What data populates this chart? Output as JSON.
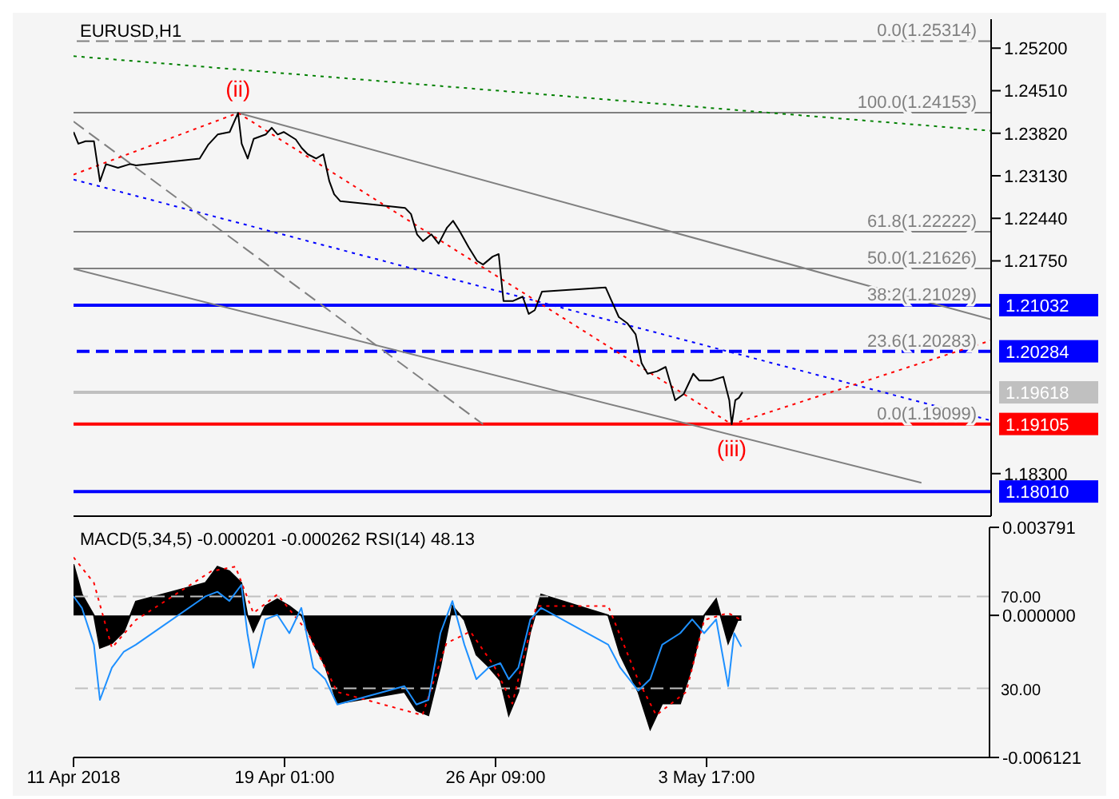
{
  "chart_data": [
    {
      "type": "line",
      "title": "EURUSD,H1",
      "xlim": [
        "2018-04-11T17:00",
        "2018-05-13T13:00"
      ],
      "ylim": [
        1.1761,
        1.2567
      ],
      "yticks": [
        {
          "value": 1.183,
          "label": "1.18300"
        },
        {
          "value": 1.2175,
          "label": "1.21750"
        },
        {
          "value": 1.2244,
          "label": "1.22440"
        },
        {
          "value": 1.2313,
          "label": "1.23130"
        },
        {
          "value": 1.2382,
          "label": "1.23820"
        },
        {
          "value": 1.2451,
          "label": "1.24510"
        },
        {
          "value": 1.252,
          "label": "1.25200"
        }
      ],
      "tick_labels": "y",
      "legend": false,
      "grid": false,
      "marker": "none",
      "annotations": [
        {
          "text": "0.0(1.25314)",
          "x": "2018-05-13T13:00",
          "y": 1.25314
        },
        {
          "text": "100.0(1.24153)",
          "x": "2018-05-13T13:00",
          "y": 1.24153
        },
        {
          "text": "61.8(1.22222)",
          "x": "2018-05-13T13:00",
          "y": 1.22222
        },
        {
          "text": "50.0(1.21626)",
          "x": "2018-05-13T13:00",
          "y": 1.21626
        },
        {
          "text": "38.2(1.21029)",
          "x": "2018-05-13T13:00",
          "y": 1.21029
        },
        {
          "text": "23.6(1.20283)",
          "x": "2018-05-13T13:00",
          "y": 1.20283
        },
        {
          "text": "0.0(1.19099)",
          "x": "2018-05-13T13:00",
          "y": 1.19099
        },
        {
          "text": "(ii)",
          "x": "2018-04-17T10:00",
          "y": 1.2415
        },
        {
          "text": "(iii)",
          "x": "2018-05-04T13:00",
          "y": 1.191
        }
      ],
      "ref_lines": [
        {
          "axis": "y",
          "value": 1.25314,
          "color": "#808080",
          "line_style": "dashed"
        },
        {
          "axis": "y",
          "value": 1.24153,
          "color": "#808080",
          "line_style": "solid"
        },
        {
          "axis": "y",
          "value": 1.22222,
          "color": "#808080",
          "line_style": "solid"
        },
        {
          "axis": "y",
          "value": 1.21626,
          "color": "#808080",
          "line_style": "solid"
        },
        {
          "axis": "y",
          "value": 1.21032,
          "label": "1.21032",
          "color": "#0000ff",
          "line_style": "solid"
        },
        {
          "axis": "y",
          "value": 1.20284,
          "label": "1.20284",
          "color": "#0000ff",
          "line_style": "dashed"
        },
        {
          "axis": "y",
          "value": 1.19618,
          "label": "1.19618",
          "color": "#c0c0c0",
          "line_style": "solid"
        },
        {
          "axis": "y",
          "value": 1.19105,
          "label": "1.19105",
          "color": "#ff0000",
          "line_style": "solid"
        },
        {
          "axis": "y",
          "value": 1.1801,
          "label": "1.18010",
          "color": "#0000ff",
          "line_style": "solid"
        }
      ],
      "series": [
        {
          "color": "#008000",
          "line_style": "dotted",
          "x": [
            "2018-04-11T17:00",
            "2018-05-13T13:00"
          ],
          "values": [
            1.2507,
            1.2386
          ]
        },
        {
          "color": "#0000ff",
          "line_style": "dotted",
          "x": [
            "2018-04-11T17:00",
            "2018-05-13T13:00"
          ],
          "values": [
            1.2307,
            1.1916
          ]
        },
        {
          "color": "#808080",
          "line_style": "solid",
          "x": [
            "2018-04-17T10:00",
            "2018-05-13T13:00"
          ],
          "values": [
            1.2415,
            1.208
          ]
        },
        {
          "color": "#808080",
          "line_style": "solid",
          "x": [
            "2018-04-11T17:00",
            "2018-05-11T03:00"
          ],
          "values": [
            1.2162,
            1.1815
          ]
        },
        {
          "color": "#808080",
          "line_style": "dashed",
          "x": [
            "2018-04-11T17:00",
            "2018-04-25T22:00"
          ],
          "values": [
            1.2401,
            1.191
          ]
        },
        {
          "color": "#ff0000",
          "line_style": "dotted",
          "x": [
            "2018-04-11T17:00",
            "2018-04-17T10:00",
            "2018-05-04T13:00",
            "2018-05-13T13:00"
          ],
          "values": [
            1.2315,
            1.2415,
            1.191,
            1.2046
          ]
        },
        {
          "color": "#000000",
          "line_style": "solid",
          "x": [
            "2018-04-11T17:00",
            "2018-04-11T21:00",
            "2018-04-12T03:00",
            "2018-04-12T10:00",
            "2018-04-12T15:00",
            "2018-04-12T20:00",
            "2018-04-13T06:00",
            "2018-04-13T16:00",
            "2018-04-13T21:00",
            "2018-04-16T02:00",
            "2018-04-16T09:00",
            "2018-04-16T17:00",
            "2018-04-17T03:00",
            "2018-04-17T10:00",
            "2018-04-17T13:00",
            "2018-04-17T18:00",
            "2018-04-17T23:00",
            "2018-04-18T09:00",
            "2018-04-18T14:00",
            "2018-04-18T19:00",
            "2018-04-19T00:00",
            "2018-04-19T10:00",
            "2018-04-19T15:00",
            "2018-04-19T20:00",
            "2018-04-20T03:00",
            "2018-04-20T09:00",
            "2018-04-20T14:00",
            "2018-04-20T18:00",
            "2018-04-20T23:00",
            "2018-04-23T05:00",
            "2018-04-23T10:00",
            "2018-04-23T15:00",
            "2018-04-23T20:00",
            "2018-04-24T03:00",
            "2018-04-24T09:00",
            "2018-04-24T16:00",
            "2018-04-24T21:00",
            "2018-04-25T02:00",
            "2018-04-25T10:00",
            "2018-04-25T17:00",
            "2018-04-25T22:00",
            "2018-04-26T06:00",
            "2018-04-26T11:00",
            "2018-04-26T15:00",
            "2018-04-26T23:00",
            "2018-04-27T07:00",
            "2018-04-27T12:00",
            "2018-04-27T17:00",
            "2018-04-27T23:00",
            "2018-04-30T04:00",
            "2018-04-30T09:00",
            "2018-04-30T15:00",
            "2018-04-30T22:00",
            "2018-05-01T05:00",
            "2018-05-01T10:00",
            "2018-05-01T15:00",
            "2018-05-01T23:00",
            "2018-05-02T06:00",
            "2018-05-02T14:00",
            "2018-05-02T21:00",
            "2018-05-03T05:00",
            "2018-05-03T10:00",
            "2018-05-03T20:00",
            "2018-05-04T06:00",
            "2018-05-04T11:00",
            "2018-05-04T13:00",
            "2018-05-04T16:00",
            "2018-05-04T19:00",
            "2018-05-04T22:00"
          ],
          "values": [
            1.2384,
            1.2365,
            1.2369,
            1.2369,
            1.2304,
            1.2332,
            1.2326,
            1.2332,
            1.233,
            1.2341,
            1.2363,
            1.238,
            1.2384,
            1.2415,
            1.2365,
            1.2341,
            1.2373,
            1.238,
            1.2391,
            1.238,
            1.2384,
            1.2372,
            1.2358,
            1.2348,
            1.2341,
            1.2348,
            1.2304,
            1.2283,
            1.2272,
            1.2261,
            1.2251,
            1.2218,
            1.2207,
            1.2218,
            1.2203,
            1.2229,
            1.224,
            1.2225,
            1.2197,
            1.2175,
            1.2169,
            1.2182,
            1.2186,
            1.211,
            1.211,
            1.2117,
            1.2089,
            1.2095,
            1.2125,
            1.2132,
            1.211,
            1.2084,
            1.2074,
            1.2056,
            1.2009,
            1.1992,
            1.1996,
            1.2003,
            1.1949,
            1.1959,
            1.1992,
            1.1981,
            1.1981,
            1.1987,
            1.1949,
            1.191,
            1.1949,
            1.1953,
            1.1962
          ]
        }
      ]
    },
    {
      "type": "area",
      "title": "MACD(5,34,5) -0.000201 -0.000262 RSI(14) 48.13",
      "xlim": [
        "2018-04-11T17:00",
        "2018-05-13T13:00"
      ],
      "xticks": [
        {
          "value": "2018-04-11T17:00",
          "label": "11 Apr 2018"
        },
        {
          "value": "2018-04-19T01:00",
          "label": "19 Apr 01:00"
        },
        {
          "value": "2018-04-26T09:00",
          "label": "26 Apr 09:00"
        },
        {
          "value": "2018-05-03T17:00",
          "label": "3 May 17:00"
        }
      ],
      "ylim": [
        -0.006121,
        0.003791
      ],
      "yticks": [
        0.003791,
        {
          "value": 0,
          "label": "0.000000"
        },
        -0.006121
      ],
      "y2lim": [
        0,
        100
      ],
      "y2ticks": [
        {
          "value": 70,
          "label": "70.00"
        },
        {
          "value": 30,
          "label": "30.00"
        }
      ],
      "legend": false,
      "grid": false,
      "marker": "none",
      "ref_lines": [
        {
          "axis": "y2",
          "value": 70,
          "color": "#c0c0c0",
          "line_style": "dashed"
        },
        {
          "axis": "y2",
          "value": 30,
          "color": "#c0c0c0",
          "line_style": "dashed"
        }
      ],
      "series": [
        {
          "color": "#000000",
          "x": [
            "2018-04-11T17:00",
            "2018-04-12T00:00",
            "2018-04-12T10:00",
            "2018-04-12T15:00",
            "2018-04-13T01:00",
            "2018-04-13T11:00",
            "2018-04-13T21:00",
            "2018-04-16T07:00",
            "2018-04-16T17:00",
            "2018-04-17T03:00",
            "2018-04-17T13:00",
            "2018-04-17T18:00",
            "2018-04-17T23:00",
            "2018-04-18T09:00",
            "2018-04-18T19:00",
            "2018-04-19T05:00",
            "2018-04-19T15:00",
            "2018-04-20T01:00",
            "2018-04-20T11:00",
            "2018-04-20T21:00",
            "2018-04-23T05:00",
            "2018-04-23T15:00",
            "2018-04-24T01:00",
            "2018-04-24T11:00",
            "2018-04-24T21:00",
            "2018-04-25T07:00",
            "2018-04-25T17:00",
            "2018-04-26T03:00",
            "2018-04-26T13:00",
            "2018-04-26T20:00",
            "2018-04-27T04:00",
            "2018-04-27T14:00",
            "2018-04-27T23:00",
            "2018-04-30T07:00",
            "2018-04-30T17:00",
            "2018-05-01T08:00",
            "2018-05-01T18:00",
            "2018-05-02T04:00",
            "2018-05-02T19:00",
            "2018-05-03T05:00",
            "2018-05-03T15:00",
            "2018-05-04T01:00",
            "2018-05-04T11:00",
            "2018-05-04T19:00",
            "2018-05-04T22:00"
          ],
          "values": [
            0.0022,
            0.0009,
            0,
            -0.0014,
            -0.0012,
            -0.0007,
            0.0006,
            0.0014,
            0.0021,
            0.0019,
            0.0014,
            0,
            -0.0007,
            0.0004,
            0.0007,
            0.0004,
            0,
            -0.0012,
            -0.0022,
            -0.0038,
            -0.0033,
            -0.0041,
            -0.0043,
            -0.0022,
            0.0004,
            -0.0002,
            -0.0017,
            -0.0022,
            -0.0028,
            -0.0043,
            -0.0033,
            -0.0007,
            0.0009,
            0,
            -0.0017,
            -0.0033,
            -0.0049,
            -0.0038,
            -0.0038,
            -0.0022,
            0,
            0.0007,
            -0.0012,
            -0.0002,
            -0.0002
          ]
        },
        {
          "type": "line",
          "color": "#ff0000",
          "line_style": "dotted",
          "x": [
            "2018-04-11T17:00",
            "2018-04-12T10:00",
            "2018-04-13T01:00",
            "2018-04-13T21:00",
            "2018-04-16T12:00",
            "2018-04-17T08:00",
            "2018-04-17T23:00",
            "2018-04-18T19:00",
            "2018-04-19T20:00",
            "2018-04-20T21:00",
            "2018-04-23T20:00",
            "2018-04-24T16:00",
            "2018-04-25T12:00",
            "2018-04-26T08:00",
            "2018-04-26T23:00",
            "2018-04-27T19:00",
            "2018-04-30T07:00",
            "2018-05-01T08:00",
            "2018-05-01T23:00",
            "2018-05-03T00:00",
            "2018-05-03T15:00",
            "2018-05-04T11:00",
            "2018-05-04T22:00"
          ],
          "values": [
            0.0025,
            0.0014,
            -0.0014,
            -0.0002,
            0.0019,
            0.0021,
            0.0001,
            0.0009,
            -0.0007,
            -0.0033,
            -0.0043,
            -0.0012,
            -0.0007,
            -0.0022,
            -0.0038,
            0.0004,
            0.0004,
            -0.0028,
            -0.0043,
            -0.0033,
            -0.0002,
            0.0001,
            -0.0002
          ]
        },
        {
          "type": "line",
          "color": "#1e90ff",
          "line_style": "solid",
          "axis": "y2",
          "x": [
            "2018-04-11T17:00",
            "2018-04-12T00:00",
            "2018-04-12T10:00",
            "2018-04-12T15:00",
            "2018-04-13T01:00",
            "2018-04-13T11:00",
            "2018-04-13T21:00",
            "2018-04-16T07:00",
            "2018-04-16T17:00",
            "2018-04-17T03:00",
            "2018-04-17T13:00",
            "2018-04-17T18:00",
            "2018-04-17T23:00",
            "2018-04-18T09:00",
            "2018-04-18T19:00",
            "2018-04-19T05:00",
            "2018-04-19T15:00",
            "2018-04-20T01:00",
            "2018-04-20T11:00",
            "2018-04-20T21:00",
            "2018-04-23T05:00",
            "2018-04-23T15:00",
            "2018-04-24T01:00",
            "2018-04-24T11:00",
            "2018-04-24T21:00",
            "2018-04-25T07:00",
            "2018-04-25T17:00",
            "2018-04-26T03:00",
            "2018-04-26T13:00",
            "2018-04-26T20:00",
            "2018-04-27T04:00",
            "2018-04-27T14:00",
            "2018-04-27T23:00",
            "2018-04-30T07:00",
            "2018-04-30T17:00",
            "2018-05-01T08:00",
            "2018-05-01T18:00",
            "2018-05-02T04:00",
            "2018-05-02T19:00",
            "2018-05-03T05:00",
            "2018-05-03T15:00",
            "2018-05-04T01:00",
            "2018-05-04T11:00",
            "2018-05-04T16:00",
            "2018-05-04T19:00",
            "2018-05-04T22:00"
          ],
          "values": [
            70,
            65,
            49,
            25,
            39,
            46,
            49,
            70,
            72,
            68,
            75,
            54,
            39,
            60,
            62,
            54,
            65,
            39,
            34,
            23,
            31,
            23,
            25,
            54,
            68,
            49,
            34,
            39,
            41,
            34,
            39,
            60,
            65,
            49,
            39,
            29,
            34,
            49,
            54,
            60,
            54,
            60,
            31,
            54,
            51,
            48.13
          ]
        }
      ]
    }
  ]
}
